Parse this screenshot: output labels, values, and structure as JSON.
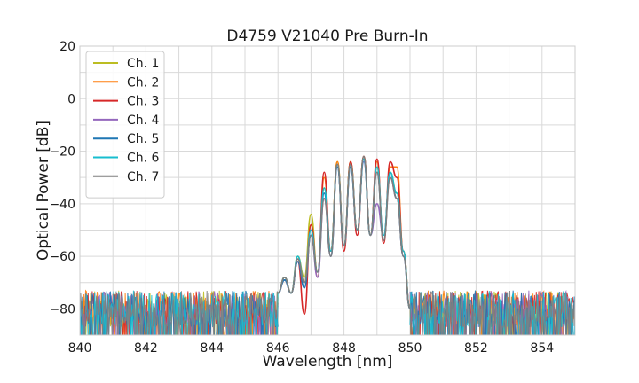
{
  "chart_data": {
    "type": "line",
    "title": "D4759 V21040 Pre Burn-In",
    "xlabel": "Wavelength [nm]",
    "ylabel": "Optical Power [dB]",
    "xlim": [
      840,
      855
    ],
    "ylim": [
      -90,
      20
    ],
    "xticks": [
      840,
      842,
      844,
      846,
      848,
      850,
      852,
      854
    ],
    "yticks": [
      20,
      0,
      -20,
      -40,
      -60,
      -80
    ],
    "ytick_labels": [
      "20",
      "0",
      "−20",
      "−40",
      "−60",
      "−80"
    ],
    "grid": true,
    "legend_position": "top-left",
    "noise_floor": {
      "x_range_left": [
        840,
        846
      ],
      "x_range_right": [
        850,
        855
      ],
      "level": -80,
      "min": -90
    },
    "series": [
      {
        "name": "Ch. 1",
        "color": "#bcbd22",
        "x": [
          846.0,
          846.2,
          846.4,
          846.6,
          846.8,
          847.0,
          847.2,
          847.4,
          847.6,
          847.8,
          848.0,
          848.2,
          848.4,
          848.6,
          848.8,
          849.0,
          849.2,
          849.4,
          849.6,
          849.8,
          850.0
        ],
        "y": [
          -74,
          -68,
          -74,
          -60,
          -68,
          -44,
          -66,
          -34,
          -58,
          -24,
          -56,
          -24,
          -50,
          -23,
          -52,
          -26,
          -54,
          -28,
          -36,
          -58,
          -80
        ]
      },
      {
        "name": "Ch. 2",
        "color": "#ff7f0e",
        "x": [
          846.0,
          846.2,
          846.4,
          846.6,
          846.8,
          847.0,
          847.2,
          847.4,
          847.6,
          847.8,
          848.0,
          848.2,
          848.4,
          848.6,
          848.8,
          849.0,
          849.2,
          849.4,
          849.6,
          849.8,
          850.0
        ],
        "y": [
          -74,
          -68,
          -74,
          -61,
          -70,
          -48,
          -68,
          -30,
          -58,
          -24,
          -56,
          -24,
          -50,
          -22,
          -52,
          -24,
          -54,
          -26,
          -26,
          -58,
          -80
        ]
      },
      {
        "name": "Ch. 3",
        "color": "#d62728",
        "x": [
          846.0,
          846.2,
          846.4,
          846.6,
          846.8,
          847.0,
          847.2,
          847.4,
          847.6,
          847.8,
          848.0,
          848.2,
          848.4,
          848.6,
          848.8,
          849.0,
          849.2,
          849.4,
          849.6,
          849.8,
          850.0
        ],
        "y": [
          -74,
          -69,
          -74,
          -62,
          -82,
          -48,
          -66,
          -28,
          -58,
          -25,
          -58,
          -24,
          -52,
          -22,
          -52,
          -23,
          -55,
          -24,
          -30,
          -58,
          -80
        ]
      },
      {
        "name": "Ch. 4",
        "color": "#9467bd",
        "x": [
          846.0,
          846.2,
          846.4,
          846.6,
          846.8,
          847.0,
          847.2,
          847.4,
          847.6,
          847.8,
          848.0,
          848.2,
          848.4,
          848.6,
          848.8,
          849.0,
          849.2,
          849.4,
          849.6,
          849.8,
          850.0
        ],
        "y": [
          -74,
          -69,
          -74,
          -62,
          -72,
          -52,
          -68,
          -38,
          -60,
          -26,
          -56,
          -26,
          -50,
          -24,
          -52,
          -40,
          -52,
          -30,
          -38,
          -60,
          -80
        ]
      },
      {
        "name": "Ch. 5",
        "color": "#1f77b4",
        "x": [
          846.0,
          846.2,
          846.4,
          846.6,
          846.8,
          847.0,
          847.2,
          847.4,
          847.6,
          847.8,
          848.0,
          848.2,
          848.4,
          848.6,
          848.8,
          849.0,
          849.2,
          849.4,
          849.6,
          849.8,
          850.0
        ],
        "y": [
          -74,
          -69,
          -74,
          -62,
          -72,
          -52,
          -66,
          -36,
          -60,
          -26,
          -56,
          -26,
          -50,
          -23,
          -52,
          -28,
          -54,
          -28,
          -38,
          -60,
          -80
        ]
      },
      {
        "name": "Ch. 6",
        "color": "#17becf",
        "x": [
          846.0,
          846.2,
          846.4,
          846.6,
          846.8,
          847.0,
          847.2,
          847.4,
          847.6,
          847.8,
          848.0,
          848.2,
          848.4,
          848.6,
          848.8,
          849.0,
          849.2,
          849.4,
          849.6,
          849.8,
          850.0
        ],
        "y": [
          -74,
          -68,
          -74,
          -60,
          -70,
          -50,
          -66,
          -34,
          -58,
          -25,
          -56,
          -25,
          -50,
          -23,
          -52,
          -26,
          -52,
          -28,
          -36,
          -58,
          -80
        ]
      },
      {
        "name": "Ch. 7",
        "color": "#7f7f7f",
        "x": [
          846.0,
          846.2,
          846.4,
          846.6,
          846.8,
          847.0,
          847.2,
          847.4,
          847.6,
          847.8,
          848.0,
          848.2,
          848.4,
          848.6,
          848.8,
          849.0,
          849.2,
          849.4,
          849.6,
          849.8,
          850.0
        ],
        "y": [
          -74,
          -68,
          -74,
          -61,
          -70,
          -52,
          -66,
          -38,
          -60,
          -25,
          -56,
          -25,
          -50,
          -22,
          -52,
          -28,
          -54,
          -30,
          -38,
          -60,
          -80
        ]
      }
    ]
  }
}
